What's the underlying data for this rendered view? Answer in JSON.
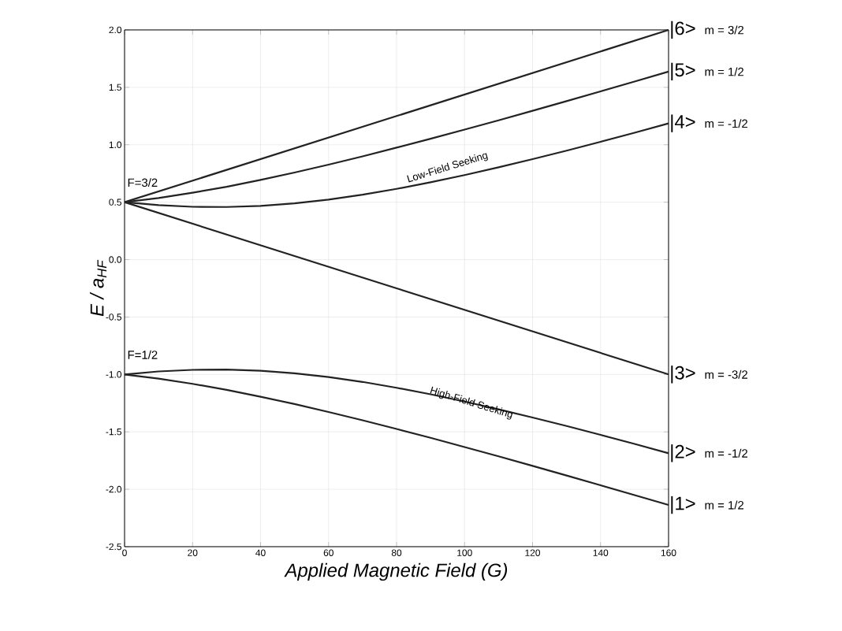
{
  "chart_data": {
    "type": "line",
    "xlabel": "Applied Magnetic Field (G)",
    "ylabel": "E / a$_{HF}$",
    "x": [
      0,
      10,
      20,
      30,
      40,
      50,
      60,
      70,
      80,
      90,
      100,
      110,
      120,
      130,
      140,
      150,
      160
    ],
    "series": [
      {
        "name": "|6>",
        "color": "#222222",
        "x": [
          0,
          80,
          160
        ],
        "values": [
          0.5,
          1.25,
          2.0
        ]
      },
      {
        "name": "|5>",
        "color": "#222222",
        "values": [
          0.5,
          0.536,
          0.582,
          0.634,
          0.694,
          0.758,
          0.827,
          0.899,
          0.975,
          1.052,
          1.132,
          1.213,
          1.296,
          1.38,
          1.465,
          1.551,
          1.637
        ]
      },
      {
        "name": "|4>",
        "color": "#222222",
        "values": [
          0.5,
          0.474,
          0.46,
          0.458,
          0.468,
          0.49,
          0.523,
          0.565,
          0.616,
          0.673,
          0.736,
          0.804,
          0.875,
          0.949,
          1.026,
          1.105,
          1.186
        ]
      },
      {
        "name": "|3>",
        "color": "#222222",
        "x": [
          0,
          80,
          160
        ],
        "values": [
          0.5,
          -0.25,
          -1.0
        ]
      },
      {
        "name": "|2>",
        "color": "#222222",
        "values": [
          -1.0,
          -0.974,
          -0.96,
          -0.958,
          -0.968,
          -0.99,
          -1.023,
          -1.065,
          -1.116,
          -1.173,
          -1.236,
          -1.304,
          -1.375,
          -1.449,
          -1.526,
          -1.605,
          -1.686
        ]
      },
      {
        "name": "|1>",
        "color": "#222222",
        "values": [
          -1.0,
          -1.036,
          -1.082,
          -1.134,
          -1.194,
          -1.258,
          -1.327,
          -1.399,
          -1.475,
          -1.552,
          -1.632,
          -1.713,
          -1.796,
          -1.88,
          -1.965,
          -2.051,
          -2.137
        ]
      }
    ],
    "annotations": [
      "m = 3/2",
      "m = 1/2",
      "m = -1/2",
      "m = -3/2",
      "m = -1/2",
      "m = 1/2",
      "F=3/2",
      "F=1/2",
      "Low-Field Seeking",
      "High-Field Seeking"
    ],
    "xlim": [
      0,
      160
    ],
    "xticks": [
      0,
      20,
      40,
      60,
      80,
      100,
      120,
      140,
      160
    ],
    "ylim": [
      -2.5,
      2.0
    ],
    "yticks": [
      {
        "value": -2.5,
        "label": "-2.5"
      },
      {
        "value": -2.0,
        "label": "-2.0"
      },
      {
        "value": -1.5,
        "label": "-1.5"
      },
      {
        "value": -1.0,
        "label": "-1.0"
      },
      {
        "value": -0.5,
        "label": "-0.5"
      },
      {
        "value": 0.0,
        "label": "0.0"
      },
      {
        "value": 0.5,
        "label": "0.5"
      },
      {
        "value": 1.0,
        "label": "1.0"
      },
      {
        "value": 1.5,
        "label": "1.5"
      },
      {
        "value": 2.0,
        "label": "2.0"
      }
    ],
    "grid": true,
    "marker": "none",
    "line_style": "solid"
  }
}
